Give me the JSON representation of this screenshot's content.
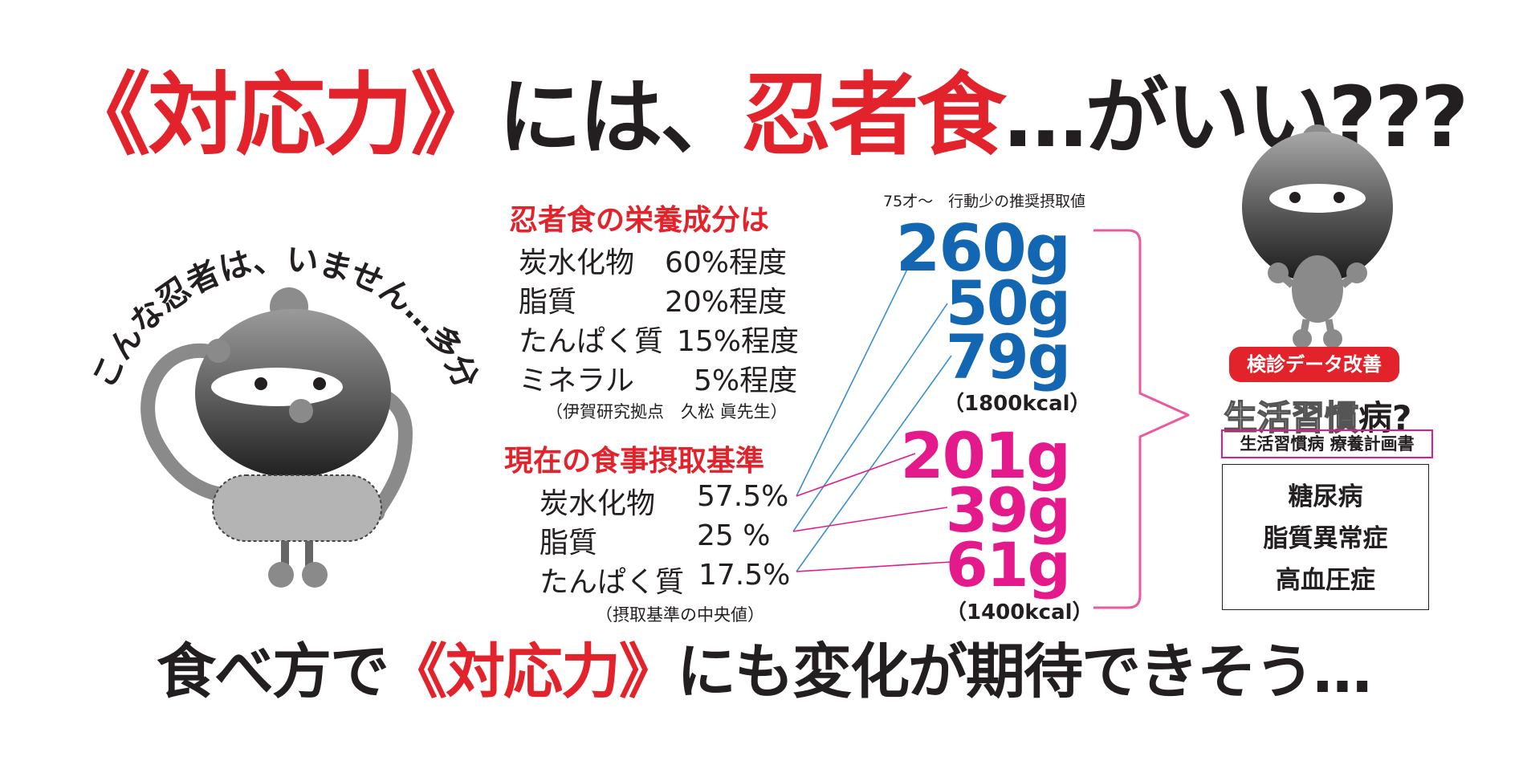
{
  "headline": {
    "part1": "《対応力》",
    "part2": "には、",
    "part3": "忍者食",
    "part4": "…がいい???"
  },
  "left_character": {
    "arc_text": "こんな忍者は、いません…多分"
  },
  "ninja_nutrition": {
    "title": "忍者食の栄養成分は",
    "rows": [
      {
        "label": "炭水化物",
        "value": "60%程度"
      },
      {
        "label": "脂質",
        "value": "20%程度"
      },
      {
        "label": "たんぱく質",
        "value": "15%程度"
      },
      {
        "label": "ミネラル",
        "value": "5%程度"
      }
    ],
    "source": "（伊賀研究拠点　久松 眞先生）"
  },
  "current_standard": {
    "title": "現在の食事摂取基準",
    "rows": [
      {
        "label": "炭水化物",
        "value": "57.5%"
      },
      {
        "label": "脂質",
        "value": "25 %"
      },
      {
        "label": "たんぱく質",
        "value": "17.5%"
      }
    ],
    "note": "（摂取基準の中央値）"
  },
  "recommended": {
    "caption": "75才～　行動少の推奨摂取値",
    "blue_values": [
      "260g",
      "50g",
      "79g"
    ],
    "blue_kcal": "（1800kcal）",
    "pink_values": [
      "201g",
      "39g",
      "61g"
    ],
    "pink_kcal": "（1400kcal）"
  },
  "right_panel": {
    "badge": "検診データ改善",
    "lifestyle_outline": "生活習慣",
    "lifestyle_suffix": "病?",
    "plan": "生活習慣病 療養計画書",
    "diseases": [
      "糖尿病",
      "脂質異常症",
      "高血圧症"
    ]
  },
  "footer": {
    "part1": "食べ方で",
    "part2": "《対応力》",
    "part3": "にも変化が期待できそう…"
  },
  "colors": {
    "red": "#e3232b",
    "blue": "#1366b2",
    "pink": "#e4198b",
    "text": "#231f20"
  }
}
